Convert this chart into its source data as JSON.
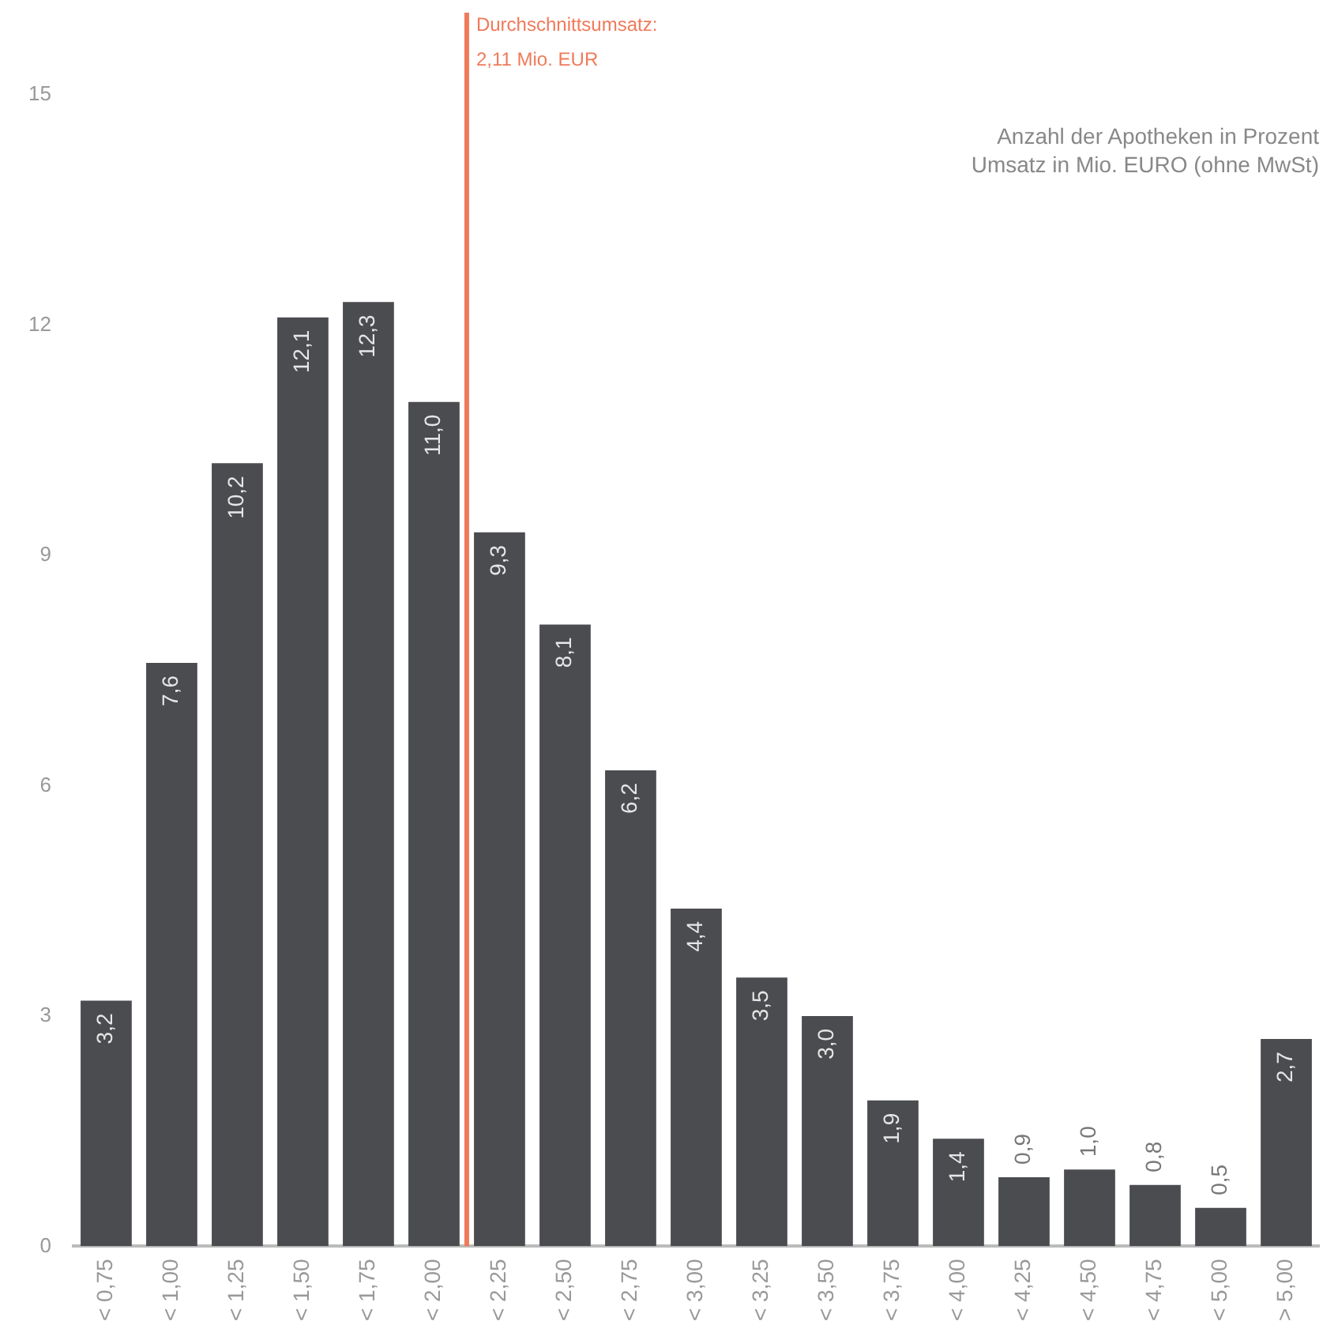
{
  "chart_data": {
    "type": "bar",
    "ylabel": "Anzahl der Apotheken in Prozent",
    "xlabel": "Umsatz in Mio. EURO (ohne MwSt)",
    "categories": [
      "< 0,75",
      "< 1,00",
      "< 1,25",
      "< 1,50",
      "< 1,75",
      "< 2,00",
      "< 2,25",
      "< 2,50",
      "< 2,75",
      "< 3,00",
      "< 3,25",
      "< 3,50",
      "< 3,75",
      "< 4,00",
      "< 4,25",
      "< 4,50",
      "< 4,75",
      "< 5,00",
      "> 5,00"
    ],
    "values": [
      3.2,
      7.6,
      10.2,
      12.1,
      12.3,
      11.0,
      9.3,
      8.1,
      6.2,
      4.4,
      3.5,
      3.0,
      1.9,
      1.4,
      0.9,
      1.0,
      0.8,
      0.5,
      2.7
    ],
    "value_labels": [
      "3,2",
      "7,6",
      "10,2",
      "12,1",
      "12,3",
      "11,0",
      "9,3",
      "8,1",
      "6,2",
      "4,4",
      "3,5",
      "3,0",
      "1,9",
      "1,4",
      "0,9",
      "1,0",
      "0,8",
      "0,5",
      "2,7"
    ],
    "color": "#4b4c50",
    "ylim": [
      0,
      15
    ],
    "yticks": [
      0,
      3,
      6,
      9,
      12,
      15
    ],
    "grid": false,
    "legend": false,
    "ref_lines": [
      {
        "axis": "x",
        "value": "< 2,25",
        "label": "Durchschnittsumsatz:\n2,11 Mio. EUR",
        "color": "#f07a5a"
      }
    ]
  }
}
